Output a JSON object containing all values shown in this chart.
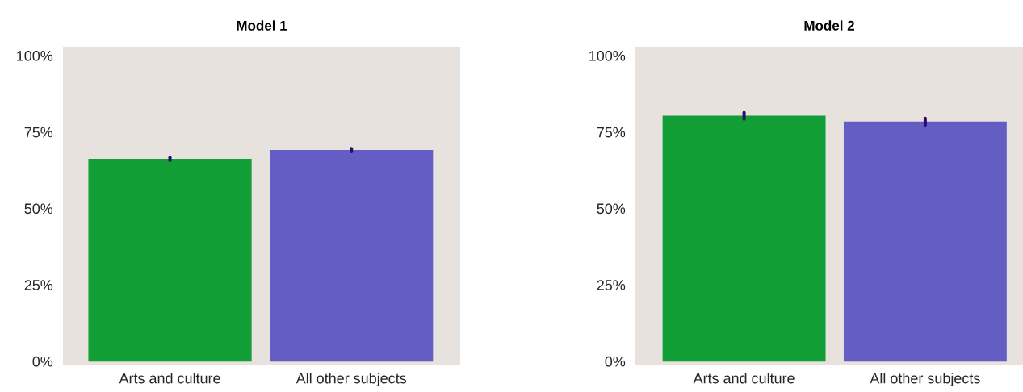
{
  "chart_data": [
    {
      "type": "bar",
      "title": "Model 1",
      "categories": [
        "Arts and culture",
        "All other subjects"
      ],
      "values": [
        66.3,
        69.2
      ],
      "colors": [
        "#119e35",
        "#645ec4"
      ],
      "errors": [
        0.5,
        0.5
      ],
      "ylim": [
        -1,
        103
      ],
      "yticks": [
        {
          "value": 0,
          "label": "0%"
        },
        {
          "value": 25,
          "label": "25%"
        },
        {
          "value": 50,
          "label": "50%"
        },
        {
          "value": 75,
          "label": "75%"
        },
        {
          "value": 100,
          "label": "100%"
        }
      ],
      "grid": false
    },
    {
      "type": "bar",
      "title": "Model 2",
      "categories": [
        "Arts and culture",
        "All other subjects"
      ],
      "values": [
        80.4,
        78.5
      ],
      "colors": [
        "#119e35",
        "#645ec4"
      ],
      "errors": [
        1.1,
        1.1
      ],
      "ylim": [
        -1,
        103
      ],
      "yticks": [
        {
          "value": 0,
          "label": "0%"
        },
        {
          "value": 25,
          "label": "25%"
        },
        {
          "value": 50,
          "label": "50%"
        },
        {
          "value": 75,
          "label": "75%"
        },
        {
          "value": 100,
          "label": "100%"
        }
      ],
      "grid": false
    }
  ]
}
